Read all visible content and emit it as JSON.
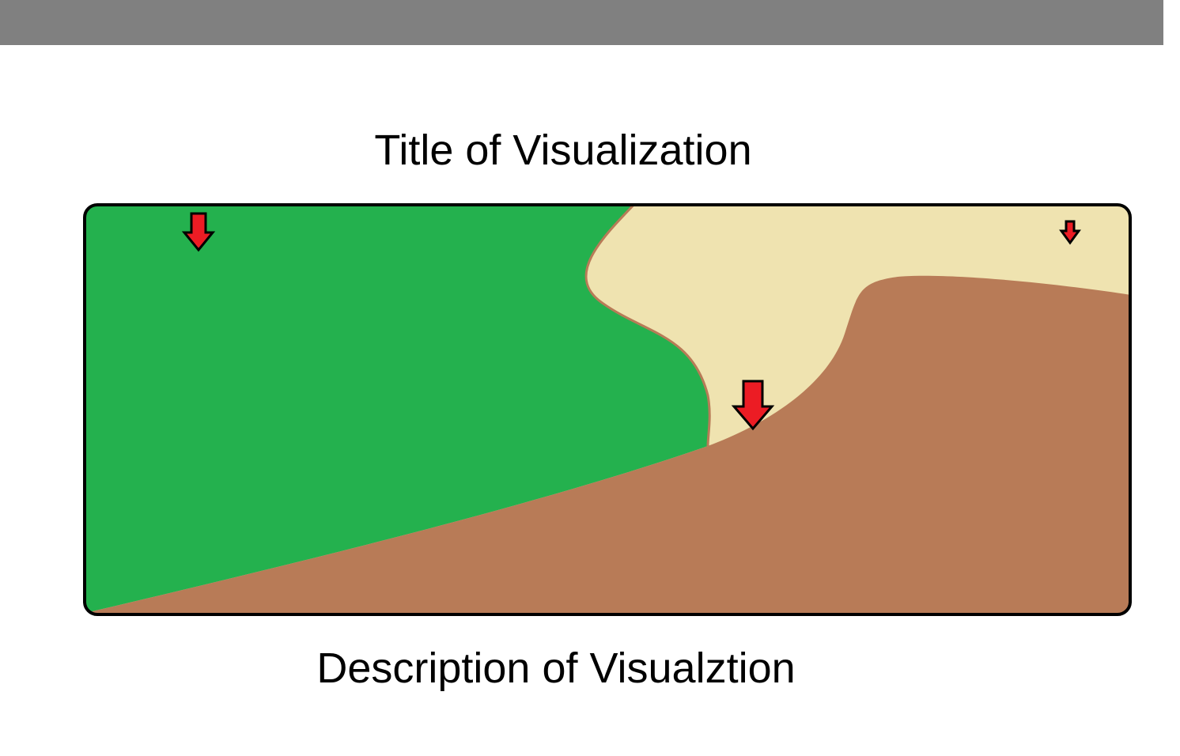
{
  "header": {
    "bar_color": "#808080"
  },
  "title": "Title of Visualization",
  "description": "Description of Visualztion",
  "visualization": {
    "regions": [
      {
        "name": "green-region",
        "color": "#24b14e"
      },
      {
        "name": "sand-region",
        "color": "#efe3b0"
      },
      {
        "name": "brown-region",
        "color": "#b87b57"
      }
    ],
    "arrow_color": "#ec1c24",
    "arrow_icons": [
      "down-arrow-icon",
      "down-arrow-icon",
      "down-arrow-icon"
    ],
    "frame_color": "#000000"
  }
}
